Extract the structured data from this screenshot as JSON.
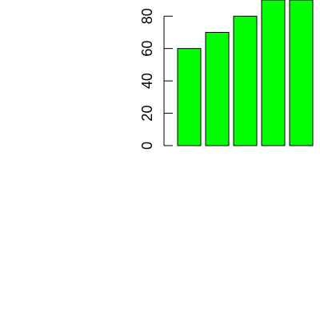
{
  "chart_data": {
    "type": "bar",
    "categories": [
      "",
      "",
      "",
      "",
      ""
    ],
    "values": [
      60,
      70,
      80,
      90,
      90
    ],
    "title": "",
    "xlabel": "",
    "ylabel": "",
    "ylim": [
      0,
      90
    ],
    "y_ticks": [
      "0",
      "20",
      "40",
      "60",
      "80"
    ],
    "bar_color": "#00ff00",
    "grid": false,
    "legend": "none"
  }
}
